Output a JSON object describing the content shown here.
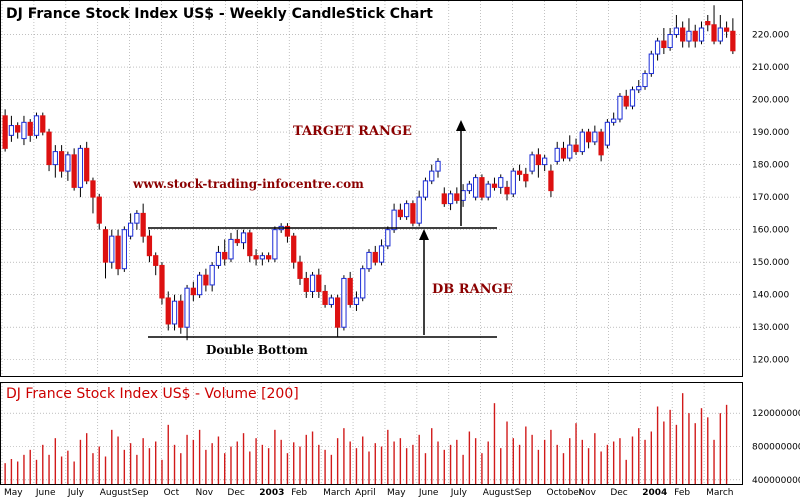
{
  "chart_data": [
    {
      "type": "candlestick",
      "title": "DJ France Stock Index US$ - Weekly CandleStick Chart",
      "ylim": [
        115,
        230
      ],
      "y_ticks": [
        "120.000",
        "130.000",
        "140.000",
        "150.000",
        "160.000",
        "170.000",
        "180.000",
        "190.000",
        "200.000",
        "210.000",
        "220.000"
      ],
      "x_labels": [
        "May",
        "June",
        "July",
        "August",
        "Sep",
        "Oct",
        "Nov",
        "Dec",
        "2003",
        "Feb",
        "March",
        "April",
        "May",
        "June",
        "July",
        "August",
        "Sep",
        "October",
        "Nov",
        "Dec",
        "2004",
        "Feb",
        "March"
      ],
      "bold_labels": [
        "2003",
        "2004"
      ],
      "grid": true,
      "weeks": [
        [
          195,
          185,
          197,
          184
        ],
        [
          189,
          192,
          195,
          187
        ],
        [
          192,
          190,
          193,
          188
        ],
        [
          188,
          193,
          195,
          186
        ],
        [
          193,
          189,
          194,
          187
        ],
        [
          189,
          195,
          196,
          188
        ],
        [
          195,
          190,
          196,
          189
        ],
        [
          190,
          180,
          191,
          178
        ],
        [
          180,
          184,
          186,
          176
        ],
        [
          184,
          178,
          186,
          176
        ],
        [
          178,
          183,
          184,
          175
        ],
        [
          183,
          173,
          185,
          172
        ],
        [
          173,
          185,
          186,
          170
        ],
        [
          185,
          175,
          187,
          174
        ],
        [
          175,
          170,
          176,
          165
        ],
        [
          170,
          162,
          171,
          160
        ],
        [
          160,
          150,
          161,
          145
        ],
        [
          150,
          158,
          160,
          148
        ],
        [
          158,
          148,
          160,
          146
        ],
        [
          148,
          160,
          161,
          147
        ],
        [
          158,
          162,
          165,
          157
        ],
        [
          162,
          165,
          166,
          160
        ],
        [
          165,
          158,
          168,
          156
        ],
        [
          158,
          152,
          160,
          150
        ],
        [
          152,
          149,
          153,
          146
        ],
        [
          149,
          139,
          150,
          137
        ],
        [
          139,
          131,
          141,
          129
        ],
        [
          131,
          138,
          140,
          129
        ],
        [
          138,
          130,
          140,
          128
        ],
        [
          130,
          142,
          143,
          126
        ],
        [
          142,
          140,
          144,
          138
        ],
        [
          140,
          146,
          147,
          139
        ],
        [
          146,
          143,
          148,
          141
        ],
        [
          143,
          149,
          150,
          141
        ],
        [
          149,
          153,
          155,
          148
        ],
        [
          153,
          151,
          157,
          149
        ],
        [
          151,
          157,
          159,
          150
        ],
        [
          157,
          156,
          160,
          155
        ],
        [
          156,
          159,
          160,
          154
        ],
        [
          159,
          152,
          160,
          150
        ],
        [
          152,
          151,
          154,
          149
        ],
        [
          151,
          152,
          153,
          149
        ],
        [
          152,
          151,
          153,
          150
        ],
        [
          151,
          160,
          161,
          150
        ],
        [
          160,
          161,
          162,
          159
        ],
        [
          161,
          158,
          162,
          156
        ],
        [
          158,
          150,
          159,
          148
        ],
        [
          150,
          145,
          152,
          143
        ],
        [
          145,
          141,
          147,
          139
        ],
        [
          141,
          146,
          147,
          139
        ],
        [
          146,
          141,
          148,
          139
        ],
        [
          141,
          137,
          143,
          136
        ],
        [
          137,
          139,
          140,
          136
        ],
        [
          139,
          130,
          140,
          127
        ],
        [
          130,
          145,
          146,
          129
        ],
        [
          145,
          137,
          147,
          136
        ],
        [
          137,
          139,
          141,
          135
        ],
        [
          139,
          148,
          149,
          138
        ],
        [
          148,
          153,
          154,
          147
        ],
        [
          153,
          150,
          155,
          149
        ],
        [
          150,
          155,
          157,
          149
        ],
        [
          155,
          160,
          161,
          154
        ],
        [
          160,
          166,
          168,
          159
        ],
        [
          166,
          164,
          168,
          163
        ],
        [
          164,
          168,
          169,
          163
        ],
        [
          168,
          162,
          169,
          161
        ],
        [
          162,
          170,
          172,
          161
        ],
        [
          170,
          175,
          176,
          169
        ],
        [
          175,
          178,
          180,
          174
        ],
        [
          178,
          181,
          182,
          176
        ],
        [
          171,
          168,
          173,
          167
        ],
        [
          168,
          171,
          172,
          166
        ],
        [
          171,
          169,
          173,
          168
        ],
        [
          169,
          172,
          174,
          167
        ],
        [
          172,
          174,
          175,
          171
        ],
        [
          170,
          176,
          177,
          169
        ],
        [
          176,
          170,
          177,
          169
        ],
        [
          170,
          174,
          175,
          169
        ],
        [
          174,
          173,
          176,
          172
        ],
        [
          173,
          176,
          177,
          171
        ],
        [
          173,
          171,
          175,
          169
        ],
        [
          171,
          178,
          179,
          170
        ],
        [
          178,
          177,
          180,
          175
        ],
        [
          177,
          175,
          179,
          173
        ],
        [
          178,
          183,
          184,
          177
        ],
        [
          183,
          180,
          185,
          176
        ],
        [
          180,
          182,
          183,
          178
        ],
        [
          178,
          172,
          180,
          170
        ],
        [
          181,
          185,
          187,
          180
        ],
        [
          185,
          182,
          187,
          181
        ],
        [
          182,
          186,
          189,
          181
        ],
        [
          186,
          184,
          188,
          183
        ],
        [
          184,
          190,
          191,
          183
        ],
        [
          190,
          187,
          191,
          185
        ],
        [
          187,
          190,
          192,
          186
        ],
        [
          190,
          183,
          191,
          181
        ],
        [
          186,
          193,
          194,
          185
        ],
        [
          193,
          194,
          196,
          192
        ],
        [
          194,
          201,
          202,
          193
        ],
        [
          201,
          198,
          203,
          197
        ],
        [
          198,
          203,
          204,
          197
        ],
        [
          203,
          204,
          206,
          202
        ],
        [
          204,
          208,
          209,
          203
        ],
        [
          208,
          214,
          215,
          207
        ],
        [
          214,
          218,
          219,
          212
        ],
        [
          218,
          216,
          222,
          214
        ],
        [
          216,
          220,
          222,
          215
        ],
        [
          220,
          222,
          226,
          219
        ],
        [
          222,
          218,
          224,
          216
        ],
        [
          218,
          221,
          225,
          216
        ],
        [
          221,
          218,
          223,
          216
        ],
        [
          218,
          222,
          224,
          217
        ],
        [
          224,
          223,
          226,
          221
        ],
        [
          223,
          218,
          229,
          217
        ],
        [
          218,
          222,
          226,
          217
        ],
        [
          222,
          221,
          224,
          219
        ],
        [
          221,
          215,
          225,
          214
        ]
      ],
      "annotations": {
        "target_range": "TARGET RANGE",
        "db_range": "DB RANGE",
        "double_bottom": "Double Bottom",
        "website": "www.stock-trading-infocentre.com"
      }
    },
    {
      "type": "bar",
      "title": "DJ France Stock Index US$ - Volume [200]",
      "ylim": [
        350000000,
        1550000000
      ],
      "y_ticks": [
        "400000000",
        "800000000",
        "1200000000"
      ],
      "values": [
        600000000,
        650000000,
        620000000,
        700000000,
        760000000,
        640000000,
        820000000,
        700000000,
        900000000,
        680000000,
        750000000,
        620000000,
        880000000,
        960000000,
        720000000,
        800000000,
        680000000,
        1000000000,
        920000000,
        760000000,
        840000000,
        700000000,
        900000000,
        780000000,
        860000000,
        640000000,
        1060000000,
        820000000,
        720000000,
        940000000,
        880000000,
        1000000000,
        760000000,
        840000000,
        920000000,
        720000000,
        800000000,
        860000000,
        960000000,
        740000000,
        900000000,
        820000000,
        780000000,
        1000000000,
        880000000,
        720000000,
        850000000,
        800000000,
        940000000,
        980000000,
        820000000,
        760000000,
        700000000,
        900000000,
        1020000000,
        860000000,
        780000000,
        920000000,
        740000000,
        840000000,
        800000000,
        1000000000,
        860000000,
        900000000,
        780000000,
        820000000,
        940000000,
        720000000,
        1020000000,
        860000000,
        760000000,
        820000000,
        880000000,
        700000000,
        980000000,
        900000000,
        720000000,
        860000000,
        1320000000,
        780000000,
        1100000000,
        900000000,
        820000000,
        1040000000,
        940000000,
        760000000,
        880000000,
        1000000000,
        820000000,
        720000000,
        900000000,
        1080000000,
        880000000,
        780000000,
        960000000,
        740000000,
        820000000,
        860000000,
        900000000,
        640000000,
        920000000,
        1020000000,
        880000000,
        980000000,
        1280000000,
        1100000000,
        1240000000,
        1060000000,
        1440000000,
        1200000000,
        1080000000,
        1260000000,
        1150000000,
        880000000,
        1200000000,
        1300000000
      ]
    }
  ]
}
